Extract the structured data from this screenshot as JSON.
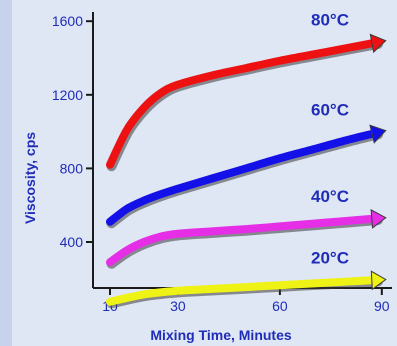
{
  "chart_data": {
    "type": "line",
    "xlabel": "Mixing Time, Minutes",
    "ylabel": "Viscosity, cps",
    "xlim": [
      5,
      93
    ],
    "ylim": [
      150,
      1650
    ],
    "x_ticks": [
      10,
      30,
      60,
      90
    ],
    "y_ticks": [
      400,
      800,
      1200,
      1600
    ],
    "grid": false,
    "series": [
      {
        "name": "80°C",
        "color": "#ee1111",
        "x": [
          10,
          15,
          20,
          25,
          30,
          40,
          50,
          60,
          70,
          80,
          90
        ],
        "y": [
          820,
          1010,
          1130,
          1210,
          1255,
          1305,
          1345,
          1385,
          1420,
          1455,
          1490
        ]
      },
      {
        "name": "60°C",
        "color": "#1411e8",
        "x": [
          10,
          15,
          20,
          25,
          30,
          40,
          50,
          60,
          70,
          80,
          90
        ],
        "y": [
          510,
          580,
          625,
          660,
          690,
          745,
          800,
          855,
          905,
          955,
          1000
        ]
      },
      {
        "name": "40°C",
        "color": "#e62ee6",
        "x": [
          10,
          15,
          20,
          25,
          30,
          40,
          50,
          60,
          70,
          80,
          90
        ],
        "y": [
          290,
          355,
          400,
          430,
          445,
          458,
          470,
          485,
          500,
          515,
          530
        ]
      },
      {
        "name": "20°C",
        "color": "#eef215",
        "x": [
          10,
          20,
          30,
          40,
          50,
          60,
          70,
          80,
          90
        ],
        "y": [
          75,
          115,
          135,
          145,
          155,
          165,
          175,
          185,
          195
        ]
      }
    ]
  }
}
